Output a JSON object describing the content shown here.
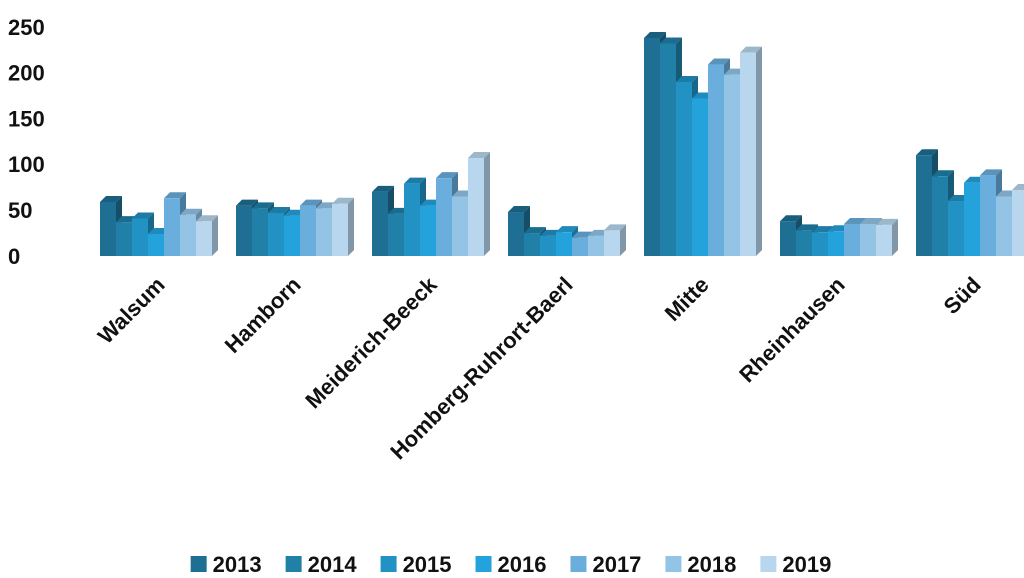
{
  "chart_data": {
    "type": "bar3d",
    "categories": [
      "Walsum",
      "Hamborn",
      "Meiderich-Beeck",
      "Homberg-Ruhrort-Baerl",
      "Mitte",
      "Rheinhausen",
      "Süd"
    ],
    "series": [
      {
        "name": "2013",
        "color": "#1f6f94",
        "values": [
          59,
          55,
          70,
          48,
          238,
          38,
          110
        ]
      },
      {
        "name": "2014",
        "color": "#2080a8",
        "values": [
          37,
          52,
          46,
          25,
          232,
          28,
          87
        ]
      },
      {
        "name": "2015",
        "color": "#2291c3",
        "values": [
          41,
          47,
          79,
          22,
          190,
          26,
          60
        ]
      },
      {
        "name": "2016",
        "color": "#24a2dc",
        "values": [
          24,
          44,
          55,
          26,
          172,
          27,
          80
        ]
      },
      {
        "name": "2017",
        "color": "#6aaede",
        "values": [
          63,
          55,
          85,
          20,
          209,
          35,
          88
        ]
      },
      {
        "name": "2018",
        "color": "#93c4e6",
        "values": [
          45,
          52,
          65,
          22,
          198,
          35,
          65
        ]
      },
      {
        "name": "2019",
        "color": "#b8d6ee",
        "values": [
          38,
          57,
          107,
          28,
          222,
          34,
          72
        ]
      }
    ],
    "ylim": [
      0,
      250
    ],
    "yticks": [
      0,
      50,
      100,
      150,
      200,
      250
    ],
    "legend": "bottom"
  }
}
